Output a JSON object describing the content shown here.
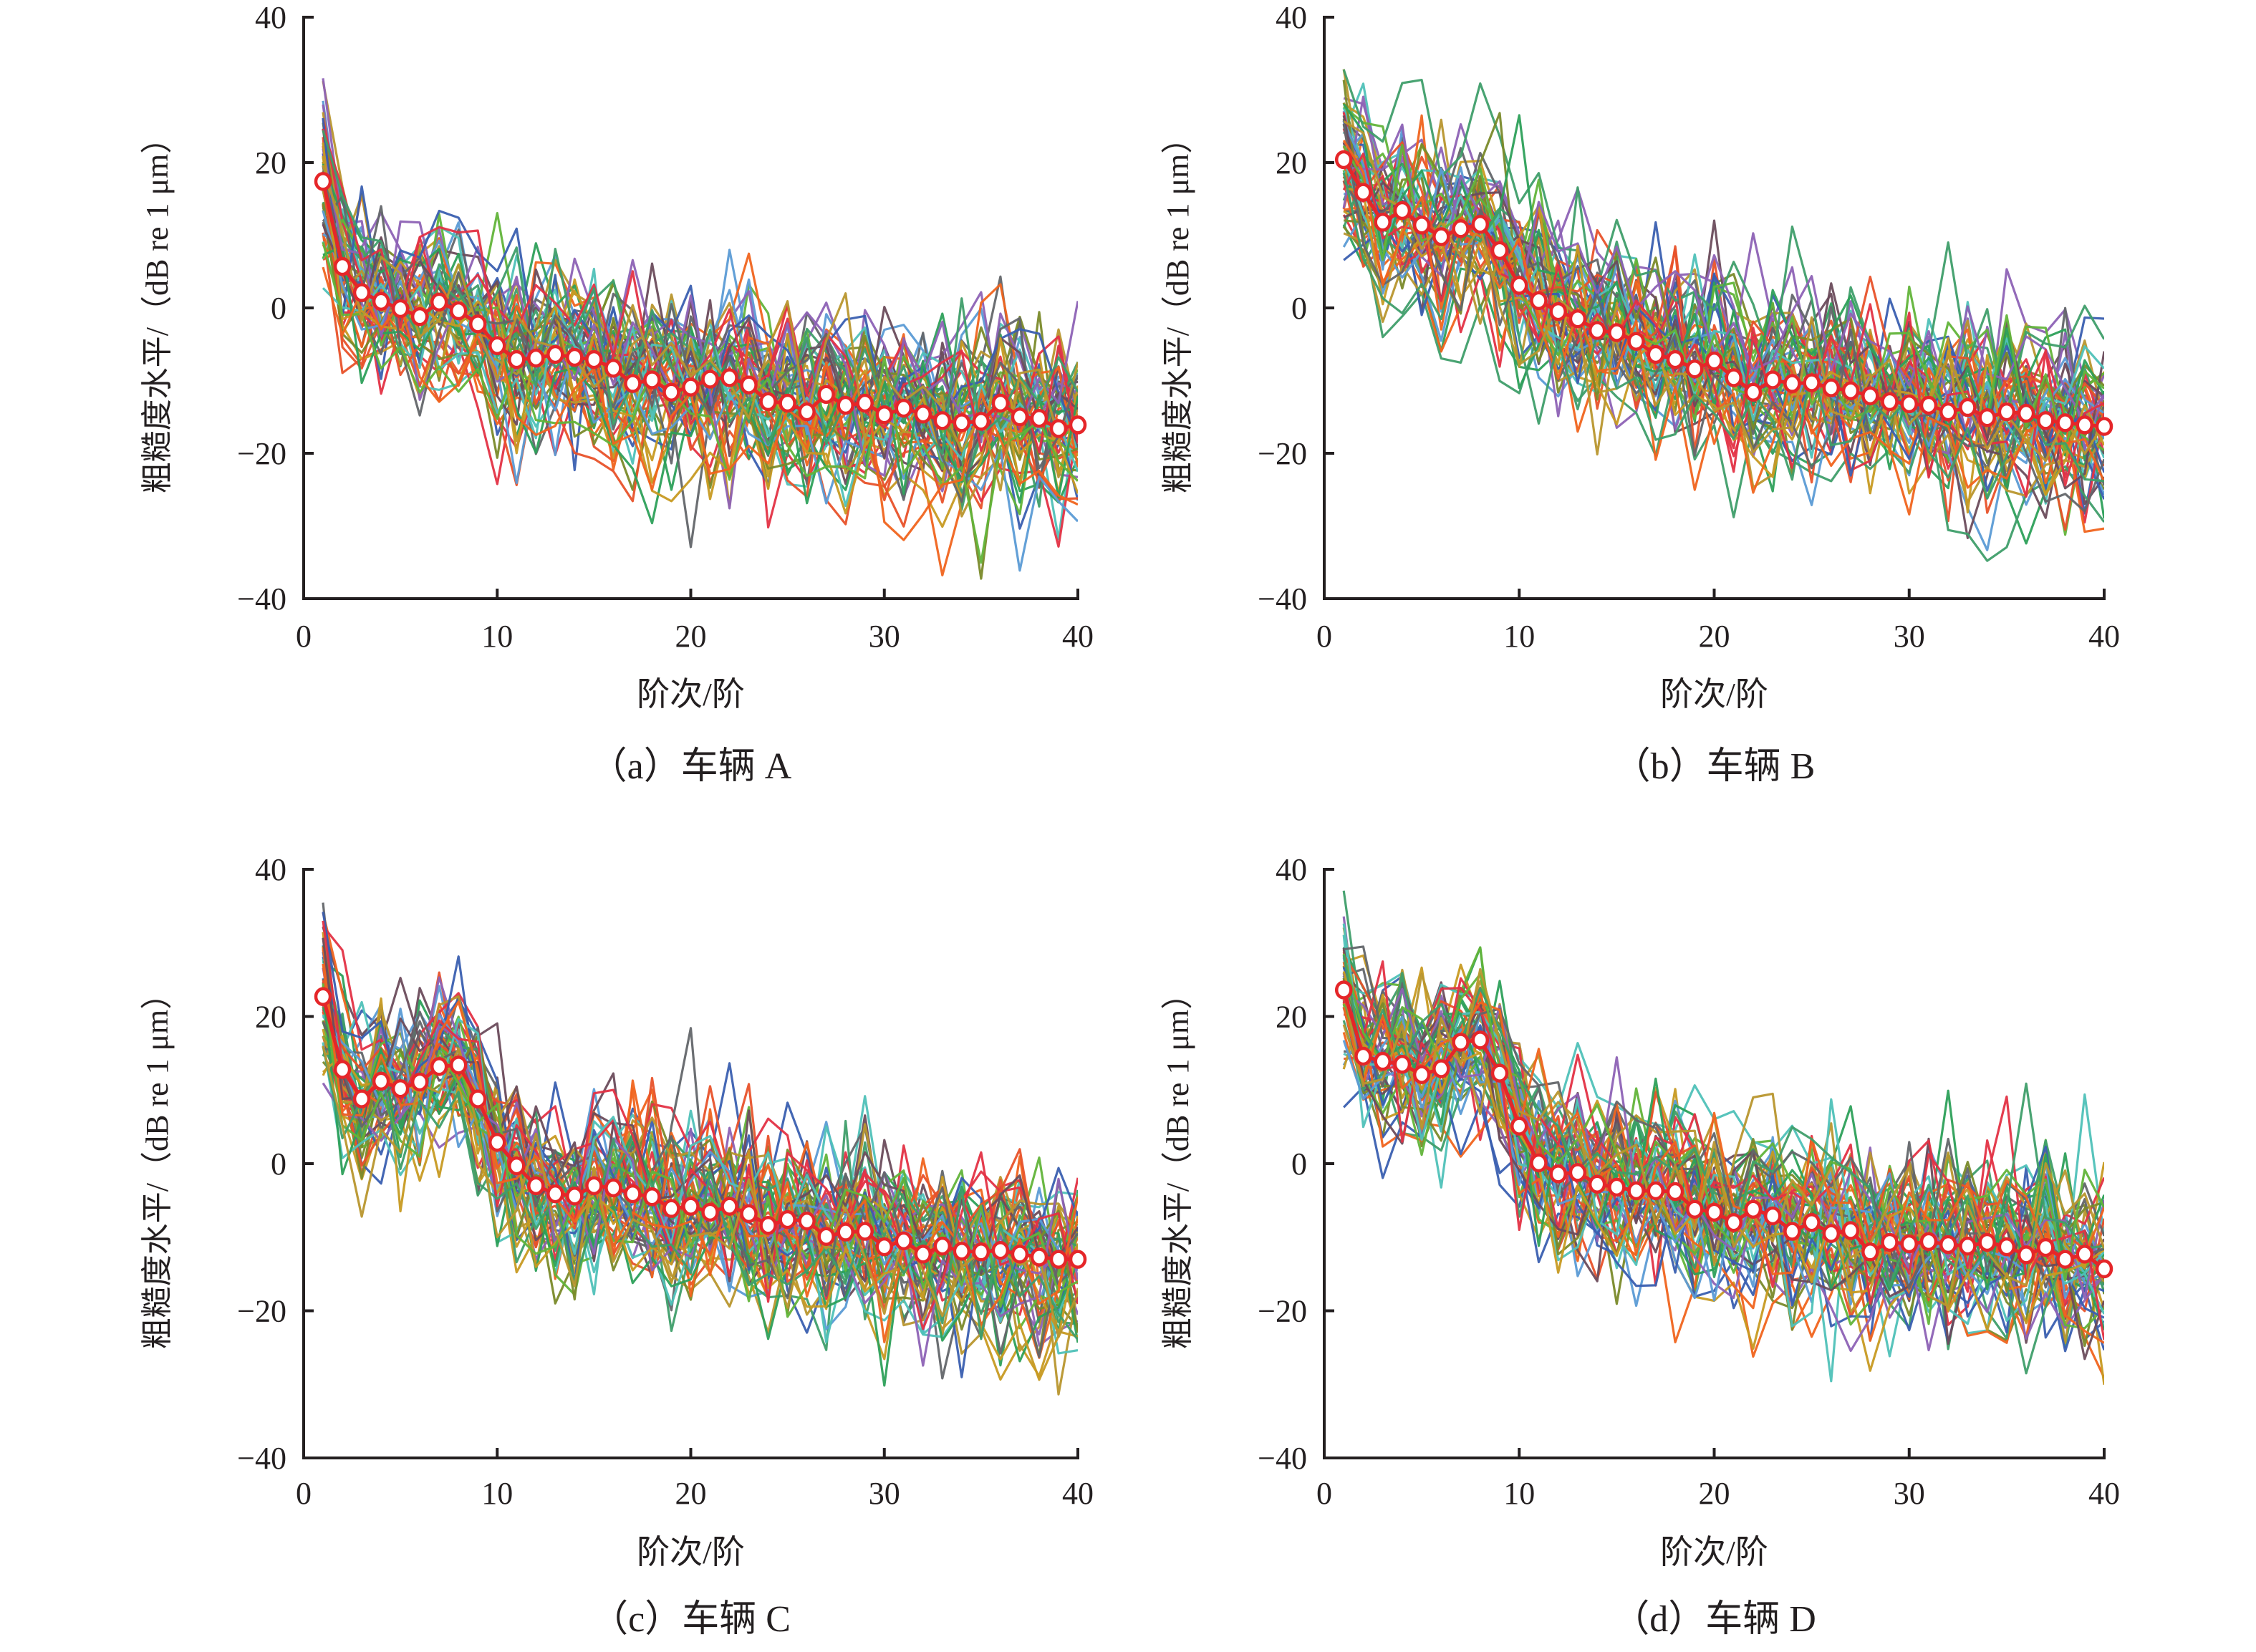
{
  "chart_data": [
    {
      "type": "line",
      "caption": "（a）车辆 A",
      "xlabel": "阶次/阶",
      "ylabel": "粗糙度水平/（dB re 1 μm）",
      "xlim": [
        0,
        40
      ],
      "ylim": [
        -40,
        40
      ],
      "xticks": [
        "0",
        "10",
        "20",
        "30",
        "40"
      ],
      "yticks": [
        "−40",
        "−20",
        "0",
        "20",
        "40"
      ],
      "grid": false,
      "mean_series": {
        "name": "mean",
        "x": [
          1,
          2,
          3,
          4,
          5,
          6,
          7,
          8,
          9,
          10,
          11,
          12,
          13,
          14,
          15,
          16,
          17,
          18,
          19,
          20,
          21,
          22,
          23,
          24,
          25,
          26,
          27,
          28,
          29,
          30,
          31,
          32,
          33,
          34,
          35,
          36,
          37,
          38,
          39,
          40
        ],
        "values": [
          17.4,
          5.7,
          2.1,
          0.9,
          -0.1,
          -1.2,
          0.8,
          -0.4,
          -2.2,
          -5.2,
          -7.1,
          -6.9,
          -6.4,
          -6.8,
          -7.1,
          -8.3,
          -10.4,
          -9.9,
          -11.6,
          -10.9,
          -9.8,
          -9.6,
          -10.6,
          -12.9,
          -13.1,
          -14.3,
          -11.9,
          -13.4,
          -13.1,
          -14.7,
          -13.8,
          -14.6,
          -15.5,
          -15.8,
          -15.6,
          -13.1,
          -15.0,
          -15.2,
          -16.6,
          -16.1
        ]
      }
    },
    {
      "type": "line",
      "caption": "（b）车辆 B",
      "xlabel": "阶次/阶",
      "ylabel": "粗糙度水平/（dB re 1 μm）",
      "xlim": [
        0,
        40
      ],
      "ylim": [
        -40,
        40
      ],
      "xticks": [
        "0",
        "10",
        "20",
        "30",
        "40"
      ],
      "yticks": [
        "−40",
        "−20",
        "0",
        "20",
        "40"
      ],
      "grid": false,
      "mean_series": {
        "name": "mean",
        "x": [
          1,
          2,
          3,
          4,
          5,
          6,
          7,
          8,
          9,
          10,
          11,
          12,
          13,
          14,
          15,
          16,
          17,
          18,
          19,
          20,
          21,
          22,
          23,
          24,
          25,
          26,
          27,
          28,
          29,
          30,
          31,
          32,
          33,
          34,
          35,
          36,
          37,
          38,
          39,
          40
        ],
        "values": [
          20.4,
          15.9,
          11.8,
          13.4,
          11.4,
          9.8,
          10.9,
          11.5,
          7.9,
          3.1,
          1.0,
          -0.5,
          -1.5,
          -3.1,
          -3.4,
          -4.6,
          -6.4,
          -7.1,
          -8.4,
          -7.3,
          -9.6,
          -11.6,
          -9.9,
          -10.4,
          -10.3,
          -11.0,
          -11.4,
          -12.1,
          -12.9,
          -13.2,
          -13.4,
          -14.3,
          -13.7,
          -15.1,
          -14.3,
          -14.5,
          -15.5,
          -15.8,
          -16.1,
          -16.3
        ]
      }
    },
    {
      "type": "line",
      "caption": "（c）车辆 C",
      "xlabel": "阶次/阶",
      "ylabel": "粗糙度水平/（dB re 1 μm）",
      "xlim": [
        0,
        40
      ],
      "ylim": [
        -40,
        40
      ],
      "xticks": [
        "0",
        "10",
        "20",
        "30",
        "40"
      ],
      "yticks": [
        "−40",
        "−20",
        "0",
        "20",
        "40"
      ],
      "grid": false,
      "mean_series": {
        "name": "mean",
        "x": [
          1,
          2,
          3,
          4,
          5,
          6,
          7,
          8,
          9,
          10,
          11,
          12,
          13,
          14,
          15,
          16,
          17,
          18,
          19,
          20,
          21,
          22,
          23,
          24,
          25,
          26,
          27,
          28,
          29,
          30,
          31,
          32,
          33,
          34,
          35,
          36,
          37,
          38,
          39,
          40
        ],
        "values": [
          22.7,
          12.8,
          8.8,
          11.2,
          10.2,
          11.1,
          13.2,
          13.4,
          8.8,
          2.9,
          -0.3,
          -3.0,
          -4.1,
          -4.4,
          -3.0,
          -3.3,
          -4.1,
          -4.5,
          -6.1,
          -5.8,
          -6.6,
          -5.8,
          -6.8,
          -8.4,
          -7.6,
          -7.8,
          -9.9,
          -9.3,
          -9.2,
          -11.3,
          -10.5,
          -12.3,
          -11.2,
          -11.9,
          -12.0,
          -11.8,
          -12.3,
          -12.7,
          -13.0,
          -13.0
        ]
      }
    },
    {
      "type": "line",
      "caption": "（d）车辆 D",
      "xlabel": "阶次/阶",
      "ylabel": "粗糙度水平/（dB re 1 μm）",
      "xlim": [
        0,
        40
      ],
      "ylim": [
        -40,
        40
      ],
      "xticks": [
        "0",
        "10",
        "20",
        "30",
        "40"
      ],
      "yticks": [
        "−40",
        "−20",
        "0",
        "20",
        "40"
      ],
      "grid": false,
      "mean_series": {
        "name": "mean",
        "x": [
          1,
          2,
          3,
          4,
          5,
          6,
          7,
          8,
          9,
          10,
          11,
          12,
          13,
          14,
          15,
          16,
          17,
          18,
          19,
          20,
          21,
          22,
          23,
          24,
          25,
          26,
          27,
          28,
          29,
          30,
          31,
          32,
          33,
          34,
          35,
          36,
          37,
          38,
          39,
          40
        ],
        "values": [
          23.6,
          14.6,
          13.9,
          13.5,
          12.1,
          12.9,
          16.5,
          16.8,
          12.3,
          5.1,
          0.1,
          -1.4,
          -1.2,
          -2.8,
          -3.2,
          -3.7,
          -3.7,
          -3.8,
          -6.2,
          -6.6,
          -8.0,
          -6.2,
          -7.1,
          -9.2,
          -8.0,
          -9.5,
          -9.1,
          -12.0,
          -10.7,
          -10.9,
          -10.6,
          -11.0,
          -11.2,
          -10.7,
          -11.3,
          -12.4,
          -11.4,
          -13.0,
          -12.3,
          -14.3
        ]
      }
    }
  ],
  "colors": {
    "mean_line": "#e52629",
    "marker_fill": "#ffffff",
    "axis": "#231f20",
    "palette": [
      "#3a5fb0",
      "#e8522a",
      "#7a8a2a",
      "#5b9bd5",
      "#6b4c5c",
      "#4fc1b8",
      "#2da05a",
      "#8d62b5",
      "#c79a22",
      "#e33245",
      "#63666a",
      "#62b43a",
      "#f0641e",
      "#3f9e6a",
      "#b8962e"
    ]
  }
}
